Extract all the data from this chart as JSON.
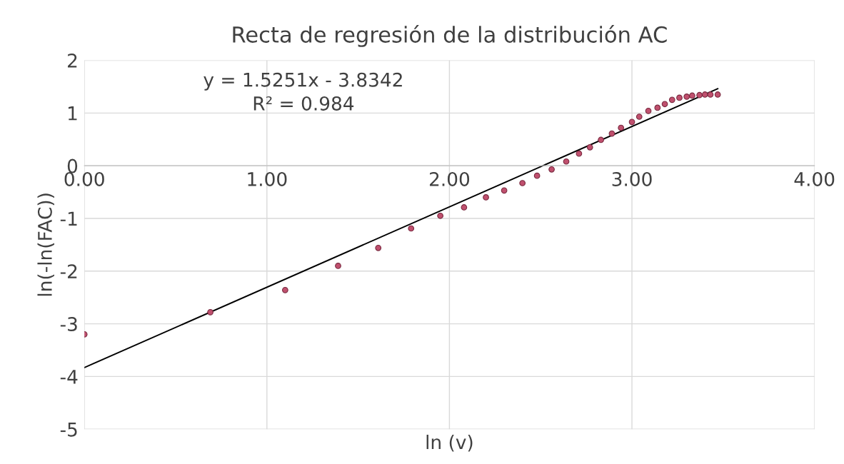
{
  "chart_data": {
    "type": "scatter",
    "title": "Recta de regresión de la distribución AC",
    "xlabel": "ln (v)",
    "ylabel": "ln(-ln(FAC))",
    "xlim": [
      0,
      4
    ],
    "ylim": [
      -5,
      2
    ],
    "xticks": [
      {
        "value": 0,
        "label": "0.00"
      },
      {
        "value": 1,
        "label": "1.00"
      },
      {
        "value": 2,
        "label": "2.00"
      },
      {
        "value": 3,
        "label": "3.00"
      },
      {
        "value": 4,
        "label": "4.00"
      }
    ],
    "yticks": [
      -5,
      -4,
      -3,
      -2,
      -1,
      0,
      1,
      2
    ],
    "grid": true,
    "annotations": [
      "y = 1.5251x - 3.8342",
      "R² = 0.984"
    ],
    "series": [
      {
        "marker": "circle",
        "color": "#c0506e",
        "x": [
          0,
          0.69,
          1.1,
          1.39,
          1.61,
          1.79,
          1.95,
          2.08,
          2.2,
          2.3,
          2.4,
          2.48,
          2.56,
          2.64,
          2.71,
          2.77,
          2.83,
          2.89,
          2.94,
          3.0,
          3.04,
          3.09,
          3.14,
          3.18,
          3.22,
          3.26,
          3.3,
          3.33,
          3.37,
          3.4,
          3.43,
          3.47
        ],
        "values": [
          -3.2,
          -2.78,
          -2.36,
          -1.9,
          -1.56,
          -1.19,
          -0.95,
          -0.79,
          -0.6,
          -0.47,
          -0.33,
          -0.19,
          -0.07,
          0.08,
          0.23,
          0.35,
          0.49,
          0.61,
          0.72,
          0.83,
          0.93,
          1.04,
          1.1,
          1.17,
          1.25,
          1.29,
          1.31,
          1.33,
          1.34,
          1.35,
          1.35,
          1.35
        ]
      },
      {
        "type": "line",
        "color": "#000000",
        "x": [
          0,
          3.47
        ],
        "values": [
          -3.83,
          1.46
        ]
      }
    ]
  }
}
